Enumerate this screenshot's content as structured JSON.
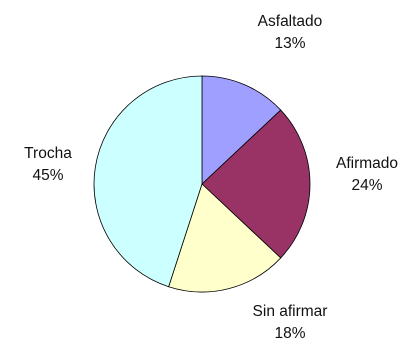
{
  "chart_data": {
    "type": "pie",
    "slices": [
      {
        "label": "Asfaltado",
        "value": 13,
        "value_label": "13%",
        "color": "#9f9fff"
      },
      {
        "label": "Afirmado",
        "value": 24,
        "value_label": "24%",
        "color": "#993366"
      },
      {
        "label": "Sin afirmar",
        "value": 18,
        "value_label": "18%",
        "color": "#ffffcc"
      },
      {
        "label": "Trocha",
        "value": 45,
        "value_label": "45%",
        "color": "#ccffff"
      }
    ],
    "start": "12 o'clock",
    "direction": "clockwise",
    "legend": "none",
    "labels": "outside slices, category name above percentage"
  }
}
